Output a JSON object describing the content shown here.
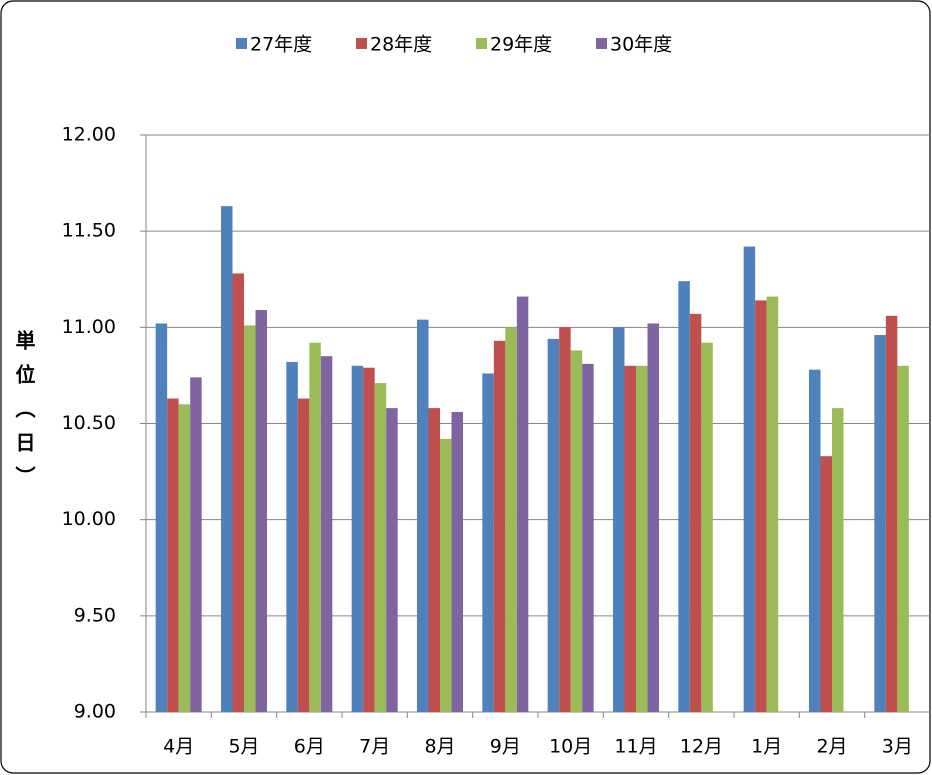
{
  "chart_data": {
    "type": "bar",
    "y_label": "単位（日）",
    "categories": [
      "4月",
      "5月",
      "6月",
      "7月",
      "8月",
      "9月",
      "10月",
      "11月",
      "12月",
      "1月",
      "2月",
      "3月"
    ],
    "series": [
      {
        "name": "27年度",
        "color": "#4f81bd",
        "values": [
          11.02,
          11.63,
          10.82,
          10.8,
          11.04,
          10.76,
          10.94,
          11.0,
          11.24,
          11.42,
          10.78,
          10.96
        ]
      },
      {
        "name": "28年度",
        "color": "#c0504d",
        "values": [
          10.63,
          11.28,
          10.63,
          10.79,
          10.58,
          10.93,
          11.0,
          10.8,
          11.07,
          11.14,
          10.33,
          11.06
        ]
      },
      {
        "name": "29年度",
        "color": "#9bbb59",
        "values": [
          10.6,
          11.01,
          10.92,
          10.71,
          10.42,
          11.0,
          10.88,
          10.8,
          10.92,
          11.16,
          10.58,
          10.8
        ]
      },
      {
        "name": "30年度",
        "color": "#8064a2",
        "values": [
          10.74,
          11.09,
          10.85,
          10.58,
          10.56,
          11.16,
          10.81,
          11.02,
          null,
          null,
          null,
          null
        ]
      }
    ],
    "ylim": [
      9,
      12
    ],
    "yticks": [
      {
        "value": 9,
        "label": "9.00"
      },
      {
        "value": 9.5,
        "label": "9.50"
      },
      {
        "value": 10,
        "label": "10.00"
      },
      {
        "value": 10.5,
        "label": "10.50"
      },
      {
        "value": 11,
        "label": "11.00"
      },
      {
        "value": 11.5,
        "label": "11.50"
      },
      {
        "value": 12,
        "label": "12.00"
      }
    ],
    "grid": true,
    "legend": "top"
  }
}
